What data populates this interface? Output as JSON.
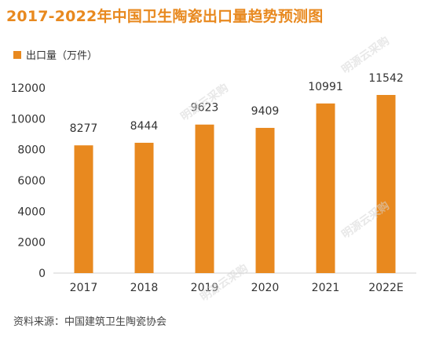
{
  "title": "2017-2022年中国卫生陶瓷出口量趋势预测图",
  "legend": {
    "label": "出口量（万件）",
    "color": "#e8891f"
  },
  "source": "资料来源：中国建筑卫生陶瓷协会",
  "watermark": "明源云采购",
  "chart_data": {
    "type": "bar",
    "categories": [
      "2017",
      "2018",
      "2019",
      "2020",
      "2021",
      "2022E"
    ],
    "series": [
      {
        "name": "出口量（万件）",
        "values": [
          8277,
          8444,
          9623,
          9409,
          10991,
          11542
        ]
      }
    ],
    "yticks": [
      "0",
      "2000",
      "4000",
      "6000",
      "8000",
      "10000",
      "12000"
    ],
    "ylim": [
      0,
      12000
    ],
    "bar_color": "#e8891f",
    "data_labels": [
      "8277",
      "8444",
      "9623",
      "9409",
      "10991",
      "11542"
    ],
    "grid": false,
    "legend_position": "top-left"
  }
}
